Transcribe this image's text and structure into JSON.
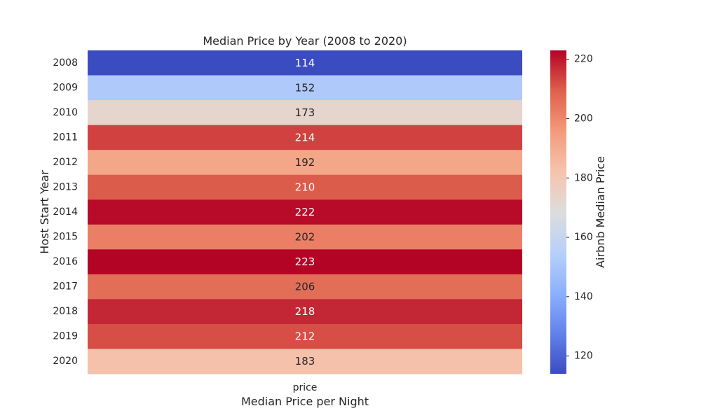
{
  "chart_data": {
    "type": "heatmap",
    "title": "Median Price by Year (2008 to 2020)",
    "xlabel": "Median Price per Night",
    "ylabel": "Host Start Year",
    "columns": [
      "price"
    ],
    "rows": [
      "2008",
      "2009",
      "2010",
      "2011",
      "2012",
      "2013",
      "2014",
      "2015",
      "2016",
      "2017",
      "2018",
      "2019",
      "2020"
    ],
    "values": [
      114,
      152,
      173,
      214,
      192,
      210,
      222,
      202,
      223,
      206,
      218,
      212,
      183
    ],
    "colormap": "coolwarm",
    "vmin": 114,
    "vmax": 223,
    "colorbar": {
      "label": "Airbnb Median Price",
      "ticks": [
        120,
        140,
        160,
        180,
        200,
        220
      ]
    }
  }
}
